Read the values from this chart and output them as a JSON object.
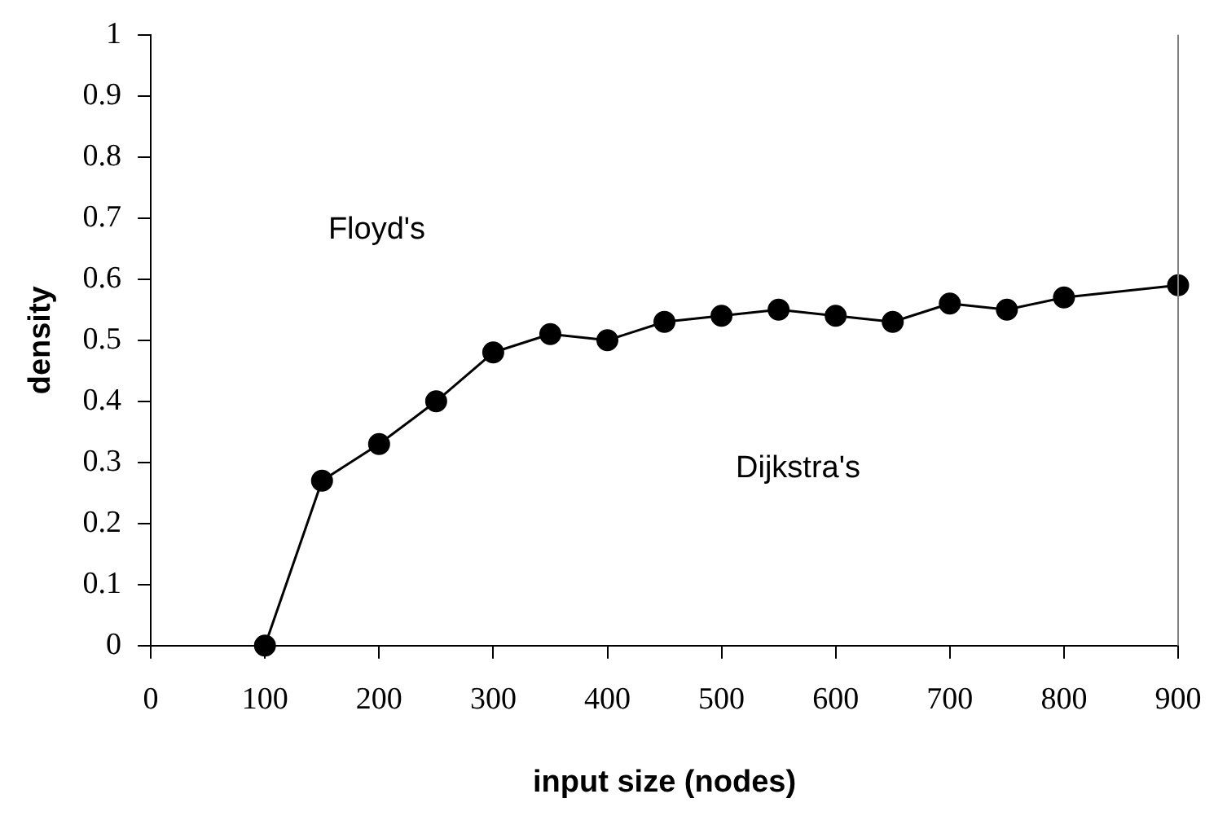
{
  "chart_data": {
    "type": "line",
    "xlabel": "input size (nodes)",
    "ylabel": "density",
    "x": [
      100,
      150,
      200,
      250,
      300,
      350,
      400,
      450,
      500,
      550,
      600,
      650,
      700,
      750,
      800,
      900
    ],
    "series": [
      {
        "color": "#000000",
        "values": [
          0,
          0.27,
          0.33,
          0.4,
          0.48,
          0.51,
          0.5,
          0.53,
          0.54,
          0.55,
          0.54,
          0.53,
          0.56,
          0.55,
          0.57,
          0.59
        ]
      }
    ],
    "xlim": [
      0,
      900
    ],
    "xticks": [
      0,
      100,
      200,
      300,
      400,
      500,
      600,
      700,
      800,
      900
    ],
    "ylim": [
      0,
      1
    ],
    "yticks": [
      0,
      0.1,
      0.2,
      0.3,
      0.4,
      0.5,
      0.6,
      0.7,
      0.8,
      0.9,
      1
    ],
    "annotations": [
      "Floyd's",
      "Dijkstra's"
    ],
    "marker": "circle",
    "line_style": "solid",
    "grid": false,
    "legend": false
  }
}
